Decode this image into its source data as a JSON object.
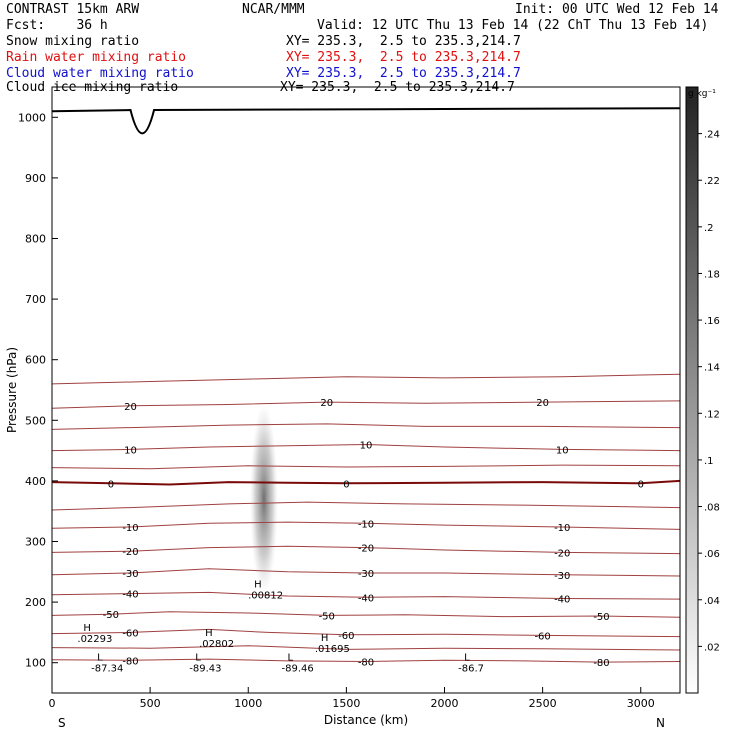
{
  "header": {
    "model": "CONTRAST 15km ARW",
    "forecast": "Fcst:    36 h",
    "center": "NCAR/MMM",
    "init": "Init: 00 UTC Wed 12 Feb 14",
    "valid": "Valid: 12 UTC Thu 13 Feb 14 (22 ChT Thu 13 Feb 14)",
    "fields": [
      {
        "label": "Snow mixing ratio",
        "xy": "XY= 235.3,  2.5 to 235.3,214.7",
        "color": "#000000"
      },
      {
        "label": "Rain water mixing ratio",
        "xy": "XY= 235.3,  2.5 to 235.3,214.7",
        "color": "#e01010"
      },
      {
        "label": "Cloud water mixing ratio",
        "xy": "XY= 235.3,  2.5 to 235.3,214.7",
        "color": "#1010d0"
      },
      {
        "label": "Cloud ice mixing ratio",
        "xy": "XY= 235.3,  2.5 to 235.3,214.7",
        "color": "#000000"
      }
    ]
  },
  "chart_data": {
    "type": "cross-section contour",
    "xlabel": "Distance (km)",
    "ylabel": "Pressure (hPa)",
    "xlim": [
      0,
      3200
    ],
    "ylim": [
      1050,
      50
    ],
    "xticks": [
      "0",
      "500",
      "1000",
      "1500",
      "2000",
      "2500",
      "3000"
    ],
    "xtick_values": [
      0,
      500,
      1000,
      1500,
      2000,
      2500,
      3000
    ],
    "yticks": [
      "100",
      "200",
      "300",
      "400",
      "500",
      "600",
      "700",
      "800",
      "900",
      "1000"
    ],
    "ytick_values": [
      100,
      200,
      300,
      400,
      500,
      600,
      700,
      800,
      900,
      1000
    ],
    "end_labels": {
      "left": "S",
      "right": "N"
    },
    "colorbar": {
      "unit": "g kg⁻¹",
      "ticks": [
        ".24",
        ".22",
        ".2",
        ".18",
        ".16",
        ".14",
        ".12",
        ".1",
        ".08",
        ".06",
        ".04",
        ".02"
      ],
      "tick_values": [
        0.24,
        0.22,
        0.2,
        0.18,
        0.16,
        0.14,
        0.12,
        0.1,
        0.08,
        0.06,
        0.04,
        0.02
      ],
      "range": [
        0,
        0.26
      ]
    },
    "temperature_isotherms": [
      {
        "value": -80,
        "label": "-80",
        "points": [
          [
            0,
            105
          ],
          [
            400,
            104
          ],
          [
            800,
            106
          ],
          [
            1200,
            103
          ],
          [
            1600,
            102
          ],
          [
            2000,
            104
          ],
          [
            2400,
            103
          ],
          [
            2800,
            101
          ],
          [
            3200,
            102
          ]
        ]
      },
      {
        "value": -70,
        "label": "",
        "points": [
          [
            0,
            125
          ],
          [
            500,
            124
          ],
          [
            1000,
            128
          ],
          [
            1500,
            122
          ],
          [
            2000,
            124
          ],
          [
            2500,
            123
          ],
          [
            3200,
            121
          ]
        ]
      },
      {
        "value": -60,
        "label": "-60",
        "points": [
          [
            0,
            148
          ],
          [
            400,
            150
          ],
          [
            800,
            155
          ],
          [
            1100,
            150
          ],
          [
            1500,
            146
          ],
          [
            2000,
            147
          ],
          [
            2500,
            145
          ],
          [
            3200,
            143
          ]
        ]
      },
      {
        "value": -50,
        "label": "-50",
        "points": [
          [
            0,
            178
          ],
          [
            300,
            180
          ],
          [
            600,
            184
          ],
          [
            1000,
            182
          ],
          [
            1400,
            178
          ],
          [
            1800,
            179
          ],
          [
            2300,
            176
          ],
          [
            2800,
            177
          ],
          [
            3200,
            175
          ]
        ]
      },
      {
        "value": -40,
        "label": "-40",
        "points": [
          [
            0,
            212
          ],
          [
            400,
            214
          ],
          [
            800,
            216
          ],
          [
            1200,
            210
          ],
          [
            1600,
            208
          ],
          [
            2000,
            209
          ],
          [
            2600,
            206
          ],
          [
            3200,
            205
          ]
        ]
      },
      {
        "value": -30,
        "label": "-30",
        "points": [
          [
            0,
            245
          ],
          [
            400,
            248
          ],
          [
            800,
            255
          ],
          [
            1200,
            250
          ],
          [
            1600,
            248
          ],
          [
            2000,
            248
          ],
          [
            2600,
            245
          ],
          [
            3200,
            243
          ]
        ]
      },
      {
        "value": -20,
        "label": "-20",
        "points": [
          [
            0,
            282
          ],
          [
            400,
            284
          ],
          [
            800,
            290
          ],
          [
            1200,
            292
          ],
          [
            1600,
            290
          ],
          [
            2000,
            286
          ],
          [
            2600,
            282
          ],
          [
            3200,
            280
          ]
        ]
      },
      {
        "value": -10,
        "label": "-10",
        "points": [
          [
            0,
            322
          ],
          [
            400,
            324
          ],
          [
            800,
            330
          ],
          [
            1200,
            332
          ],
          [
            1600,
            330
          ],
          [
            2000,
            327
          ],
          [
            2600,
            324
          ],
          [
            3200,
            320
          ]
        ]
      },
      {
        "value": -5,
        "label": "",
        "points": [
          [
            0,
            352
          ],
          [
            400,
            356
          ],
          [
            900,
            362
          ],
          [
            1300,
            365
          ],
          [
            1800,
            362
          ],
          [
            2400,
            360
          ],
          [
            3200,
            356
          ]
        ]
      },
      {
        "value": 0,
        "label": "0",
        "points": [
          [
            0,
            398
          ],
          [
            300,
            396
          ],
          [
            600,
            394
          ],
          [
            900,
            398
          ],
          [
            1200,
            397
          ],
          [
            1500,
            396
          ],
          [
            2000,
            397
          ],
          [
            2500,
            398
          ],
          [
            3000,
            396
          ],
          [
            3200,
            400
          ]
        ]
      },
      {
        "value": 5,
        "label": "",
        "points": [
          [
            0,
            422
          ],
          [
            500,
            420
          ],
          [
            1000,
            425
          ],
          [
            1500,
            423
          ],
          [
            2000,
            424
          ],
          [
            2600,
            426
          ],
          [
            3200,
            425
          ]
        ]
      },
      {
        "value": 10,
        "label": "10",
        "points": [
          [
            0,
            450
          ],
          [
            400,
            452
          ],
          [
            800,
            456
          ],
          [
            1200,
            458
          ],
          [
            1600,
            460
          ],
          [
            2000,
            456
          ],
          [
            2600,
            452
          ],
          [
            3200,
            450
          ]
        ]
      },
      {
        "value": 15,
        "label": "",
        "points": [
          [
            0,
            485
          ],
          [
            400,
            488
          ],
          [
            900,
            492
          ],
          [
            1400,
            494
          ],
          [
            1900,
            490
          ],
          [
            2500,
            490
          ],
          [
            3200,
            488
          ]
        ]
      },
      {
        "value": 20,
        "label": "20",
        "points": [
          [
            0,
            520
          ],
          [
            400,
            524
          ],
          [
            900,
            526
          ],
          [
            1400,
            530
          ],
          [
            1900,
            528
          ],
          [
            2500,
            530
          ],
          [
            3200,
            532
          ]
        ]
      },
      {
        "value": 25,
        "label": "",
        "points": [
          [
            0,
            560
          ],
          [
            500,
            564
          ],
          [
            1000,
            568
          ],
          [
            1500,
            572
          ],
          [
            2000,
            570
          ],
          [
            2600,
            572
          ],
          [
            3200,
            576
          ]
        ]
      }
    ],
    "extrema_labels": [
      {
        "text": "L",
        "sub": "-87.34",
        "x": 230,
        "y": 104
      },
      {
        "text": "L",
        "sub": "-89.43",
        "x": 730,
        "y": 104
      },
      {
        "text": "L",
        "sub": "-89.46",
        "x": 1200,
        "y": 104
      },
      {
        "text": "L",
        "sub": "-86.7",
        "x": 2100,
        "y": 104
      },
      {
        "text": "H",
        "sub": ".02293",
        "x": 160,
        "y": 152
      },
      {
        "text": "H",
        "sub": ".02802",
        "x": 780,
        "y": 144
      },
      {
        "text": "H",
        "sub": ".01695",
        "x": 1370,
        "y": 136
      },
      {
        "text": "H",
        "sub": ".00812",
        "x": 1030,
        "y": 224
      }
    ],
    "snow_region_center": {
      "x": 1080,
      "p": 370
    },
    "terrain_max_hPa": 935,
    "terrain_max_distance_km": 460
  }
}
